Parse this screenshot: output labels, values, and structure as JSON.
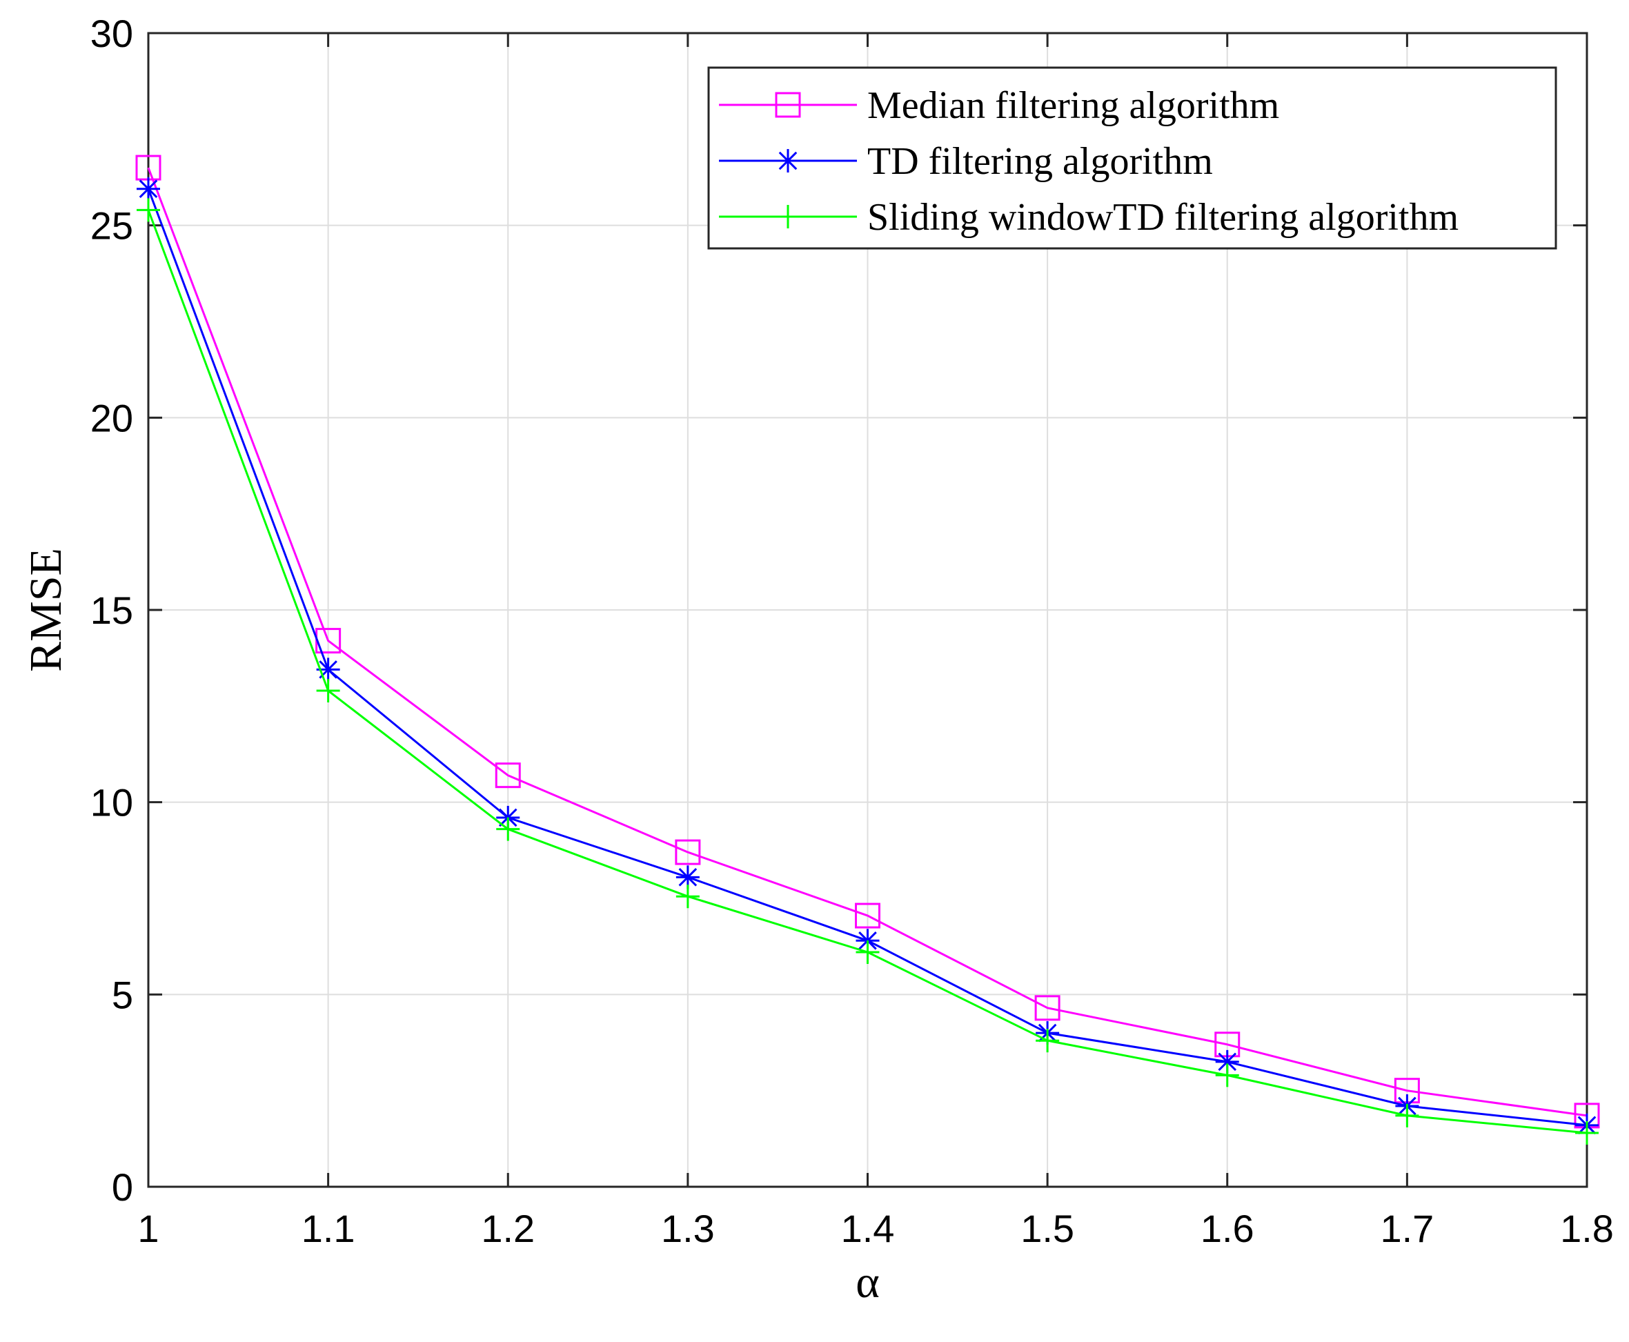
{
  "chart_data": {
    "type": "line",
    "title": "",
    "xlabel": "α",
    "ylabel": "RMSE",
    "x": [
      1,
      1.1,
      1.2,
      1.3,
      1.4,
      1.5,
      1.6,
      1.7,
      1.8
    ],
    "x_tick_labels": [
      "1",
      "1.1",
      "1.2",
      "1.3",
      "1.4",
      "1.5",
      "1.6",
      "1.7",
      "1.8"
    ],
    "y_tick_labels": [
      "0",
      "5",
      "10",
      "15",
      "20",
      "25",
      "30"
    ],
    "y_ticks": [
      0,
      5,
      10,
      15,
      20,
      25,
      30
    ],
    "xlim": [
      1,
      1.8
    ],
    "ylim": [
      0,
      30
    ],
    "grid": true,
    "legend_position": "top-right",
    "series": [
      {
        "name": "Median filtering algorithm",
        "color": "#ff00ff",
        "marker": "square",
        "values": [
          26.5,
          14.2,
          10.7,
          8.7,
          7.05,
          4.65,
          3.7,
          2.5,
          1.85
        ]
      },
      {
        "name": "TD filtering algorithm",
        "color": "#0000ff",
        "marker": "asterisk",
        "values": [
          25.95,
          13.45,
          9.6,
          8.05,
          6.4,
          4.0,
          3.25,
          2.1,
          1.6
        ]
      },
      {
        "name": "Sliding windowTD filtering algorithm",
        "color": "#00ff00",
        "marker": "plus",
        "values": [
          25.4,
          12.9,
          9.3,
          7.55,
          6.1,
          3.8,
          2.9,
          1.85,
          1.4
        ]
      }
    ]
  }
}
